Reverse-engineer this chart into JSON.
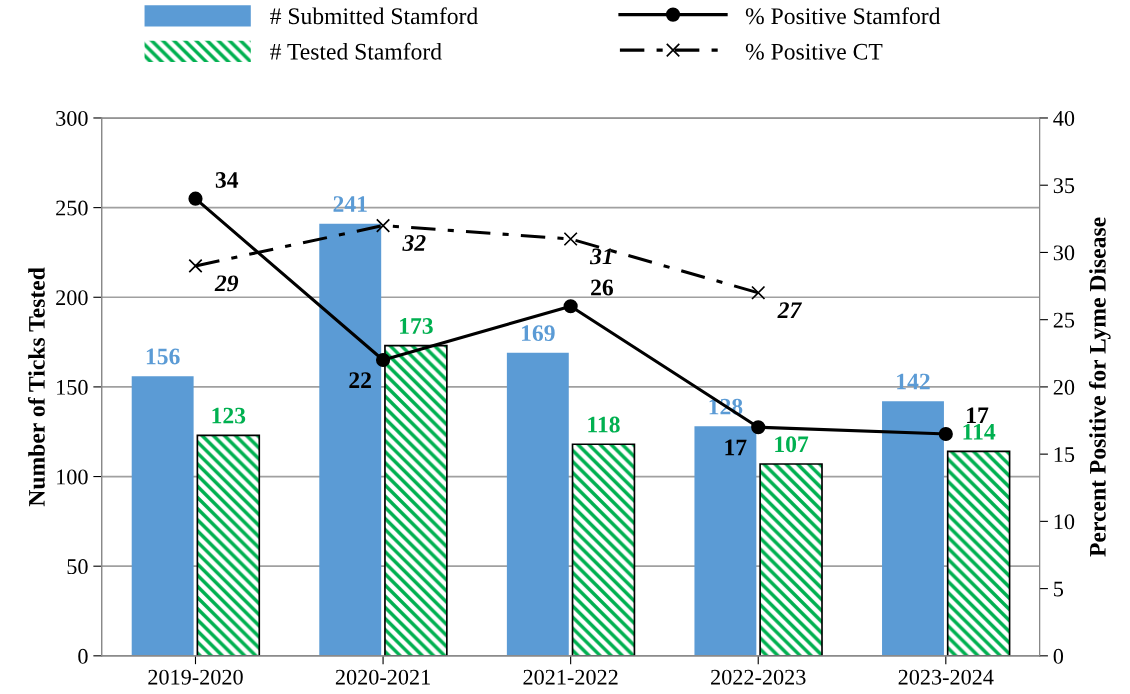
{
  "chart_data": {
    "type": "bar",
    "ylabel": "Number of Ticks Tested",
    "y2label": "Percent Positive for Lyme Disease",
    "categories": [
      "2019-2020",
      "2020-2021",
      "2021-2022",
      "2022-2023",
      "2023-2024"
    ],
    "series": [
      {
        "name": "# Submitted Stamford",
        "color": "#5b9bd5",
        "values": [
          156,
          241,
          169,
          128,
          142
        ],
        "value_labels": [
          "156",
          "241",
          "169",
          "128",
          "142"
        ]
      },
      {
        "name": "# Tested Stamford",
        "color": "#00b050",
        "values": [
          123,
          173,
          118,
          107,
          114
        ],
        "value_labels": [
          "123",
          "173",
          "118",
          "107",
          "114"
        ]
      },
      {
        "name": "% Positive Stamford",
        "type": "line",
        "axis": "y2",
        "color": "#000000",
        "marker": "circle",
        "line_style": "solid",
        "values": [
          34,
          22,
          26,
          17,
          16.5
        ],
        "value_labels": [
          "34",
          "22",
          "26",
          "17",
          "17"
        ]
      },
      {
        "name": "% Positive CT",
        "type": "line",
        "axis": "y2",
        "color": "#000000",
        "marker": "cross",
        "line_style": "dashed",
        "values": [
          29,
          32,
          31,
          27,
          null
        ],
        "value_labels": [
          "29",
          "32",
          "31",
          "27",
          null
        ]
      }
    ],
    "ylim": [
      0,
      300
    ],
    "yticks": [
      0,
      50,
      100,
      150,
      200,
      250,
      300
    ],
    "y2lim": [
      0,
      40
    ],
    "y2ticks": [
      0,
      5,
      10,
      15,
      20,
      25,
      30,
      35,
      40
    ],
    "grid": "y",
    "legend": "top"
  }
}
